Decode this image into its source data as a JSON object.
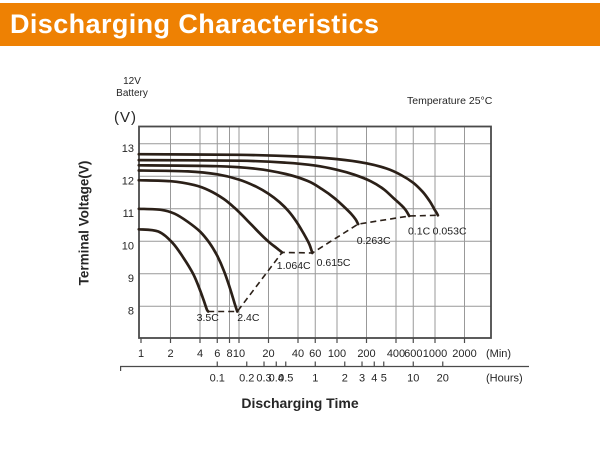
{
  "header": {
    "title": "Discharging Characteristics"
  },
  "chart_meta": {
    "battery_line1": "12V",
    "battery_line2": "Battery",
    "temperature": "Temperature 25°C",
    "y_unit": "(V)"
  },
  "colors": {
    "banner": "#ee8103",
    "banner_text": "#ffffff",
    "curve": "#2b2018",
    "grid": "#999999",
    "border": "#4a4a4a",
    "text": "#262626"
  },
  "chart_data": {
    "type": "line",
    "title": "Discharging Characteristics",
    "xlabel": "Discharging Time",
    "ylabel": "Terminal Voltage(V)",
    "x_scale": "log",
    "grid": true,
    "x_units": {
      "primary": "(Min)",
      "secondary": "(Hours)"
    },
    "x_ticks_min": [
      1,
      2,
      4,
      6,
      8,
      10,
      20,
      40,
      60,
      100,
      200,
      400,
      600,
      1000,
      2000
    ],
    "x_ticks_hours": [
      0.1,
      0.2,
      0.3,
      0.4,
      0.5,
      1,
      2,
      3,
      4,
      5,
      10,
      20
    ],
    "y_ticks": [
      13,
      12,
      11,
      10,
      9,
      8
    ],
    "ylim": [
      7.0,
      13.55
    ],
    "series": [
      {
        "name": "0.053C",
        "points": [
          [
            0.95,
            12.68
          ],
          [
            10,
            12.66
          ],
          [
            40,
            12.61
          ],
          [
            100,
            12.53
          ],
          [
            200,
            12.4
          ],
          [
            320,
            12.24
          ],
          [
            450,
            12.04
          ],
          [
            600,
            11.8
          ],
          [
            750,
            11.52
          ],
          [
            880,
            11.24
          ],
          [
            980,
            11.0
          ],
          [
            1040,
            10.87
          ],
          [
            1070,
            10.8
          ]
        ]
      },
      {
        "name": "0.1C",
        "points": [
          [
            0.95,
            12.5
          ],
          [
            10,
            12.48
          ],
          [
            30,
            12.42
          ],
          [
            60,
            12.33
          ],
          [
            100,
            12.2
          ],
          [
            150,
            12.05
          ],
          [
            220,
            11.85
          ],
          [
            300,
            11.6
          ],
          [
            380,
            11.32
          ],
          [
            450,
            11.12
          ],
          [
            500,
            10.97
          ],
          [
            545,
            10.78
          ]
        ]
      },
      {
        "name": "0.263C",
        "points": [
          [
            0.95,
            12.34
          ],
          [
            6,
            12.31
          ],
          [
            15,
            12.23
          ],
          [
            30,
            12.07
          ],
          [
            50,
            11.86
          ],
          [
            70,
            11.61
          ],
          [
            95,
            11.32
          ],
          [
            120,
            11.04
          ],
          [
            140,
            10.84
          ],
          [
            155,
            10.67
          ],
          [
            164,
            10.53
          ]
        ]
      },
      {
        "name": "0.615C",
        "points": [
          [
            0.95,
            12.18
          ],
          [
            3,
            12.15
          ],
          [
            6,
            12.06
          ],
          [
            10,
            11.9
          ],
          [
            15,
            11.68
          ],
          [
            20,
            11.46
          ],
          [
            26,
            11.2
          ],
          [
            32,
            10.93
          ],
          [
            39,
            10.58
          ],
          [
            46,
            10.22
          ],
          [
            52,
            9.92
          ],
          [
            56,
            9.64
          ]
        ]
      },
      {
        "name": "1.064C",
        "points": [
          [
            0.95,
            11.88
          ],
          [
            2,
            11.85
          ],
          [
            3.5,
            11.73
          ],
          [
            5,
            11.56
          ],
          [
            7,
            11.3
          ],
          [
            9,
            11.03
          ],
          [
            12,
            10.66
          ],
          [
            16,
            10.27
          ],
          [
            20,
            9.99
          ],
          [
            24,
            9.8
          ],
          [
            27.5,
            9.66
          ]
        ]
      },
      {
        "name": "2.4C",
        "points": [
          [
            0.95,
            11.0
          ],
          [
            1.6,
            10.97
          ],
          [
            2.2,
            10.85
          ],
          [
            3,
            10.6
          ],
          [
            4,
            10.3
          ],
          [
            5,
            9.95
          ],
          [
            6,
            9.55
          ],
          [
            7,
            9.1
          ],
          [
            8,
            8.6
          ],
          [
            9,
            8.1
          ],
          [
            9.6,
            7.84
          ]
        ]
      },
      {
        "name": "3.5C",
        "points": [
          [
            0.95,
            10.37
          ],
          [
            1.5,
            10.3
          ],
          [
            2.1,
            9.95
          ],
          [
            2.7,
            9.5
          ],
          [
            3.4,
            9.0
          ],
          [
            4.0,
            8.5
          ],
          [
            4.4,
            8.15
          ],
          [
            4.7,
            7.9
          ],
          [
            4.85,
            7.84
          ]
        ]
      }
    ],
    "cutoff_locus": {
      "style": "dashed",
      "points": [
        [
          4.85,
          7.84
        ],
        [
          9.6,
          7.84
        ],
        [
          27.5,
          9.66
        ],
        [
          56,
          9.64
        ],
        [
          164,
          10.53
        ],
        [
          545,
          10.78
        ],
        [
          1070,
          10.8
        ]
      ]
    },
    "annotations": [
      {
        "text": "3.5C",
        "t": 3.7,
        "v": 7.55
      },
      {
        "text": "2.4C",
        "t": 9.6,
        "v": 7.55
      },
      {
        "text": "1.064C",
        "t": 24.3,
        "v": 9.15
      },
      {
        "text": "0.615C",
        "t": 62,
        "v": 9.24
      },
      {
        "text": "0.263C",
        "t": 159,
        "v": 9.92
      },
      {
        "text": "0.1C",
        "t": 530,
        "v": 10.21
      },
      {
        "text": "0.053C",
        "t": 947,
        "v": 10.21
      }
    ]
  }
}
